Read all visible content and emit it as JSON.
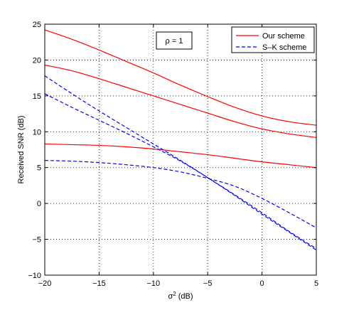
{
  "chart_data": {
    "type": "line",
    "xlabel_main": "σ",
    "xlabel_sup": "2",
    "xlabel_unit": " (dB)",
    "ylabel": "Received SNR (dB)",
    "xlim": [
      -20,
      5
    ],
    "ylim": [
      -10,
      25
    ],
    "xticks": [
      -20,
      -15,
      -10,
      -5,
      0,
      5
    ],
    "yticks": [
      -10,
      -5,
      0,
      5,
      10,
      15,
      20,
      25
    ],
    "xtick_labels": [
      "−20",
      "−15",
      "−10",
      "−5",
      "0",
      "5"
    ],
    "ytick_labels": [
      "−10",
      "−5",
      "0",
      "5",
      "10",
      "15",
      "20",
      "25"
    ],
    "grid": true,
    "legend_position": "top-right",
    "annotation": "ρ = 1",
    "legend": [
      {
        "label": "Our scheme",
        "color": "#ff0000",
        "dash": "solid"
      },
      {
        "label": "S–K scheme",
        "color": "#0000ff",
        "dash": "dashed"
      }
    ],
    "series": [
      {
        "group": "Our scheme",
        "color": "#ff0000",
        "dash": "solid",
        "x": [
          -20,
          -17.5,
          -15,
          -12.5,
          -10,
          -7.5,
          -5,
          -2.5,
          0,
          2.5,
          5
        ],
        "y": [
          24.2,
          22.9,
          21.4,
          19.8,
          18.2,
          16.5,
          14.9,
          13.4,
          12.2,
          11.4,
          10.9
        ]
      },
      {
        "group": "Our scheme",
        "color": "#ff0000",
        "dash": "solid",
        "x": [
          -20,
          -17.5,
          -15,
          -12.5,
          -10,
          -7.5,
          -5,
          -2.5,
          0,
          2.5,
          5
        ],
        "y": [
          19.3,
          18.5,
          17.4,
          16.2,
          15.0,
          13.8,
          12.6,
          11.4,
          10.4,
          9.7,
          9.2
        ]
      },
      {
        "group": "Our scheme",
        "color": "#ff0000",
        "dash": "solid",
        "x": [
          -20,
          -17.5,
          -15,
          -12.5,
          -10,
          -7.5,
          -5,
          -2.5,
          0,
          2.5,
          5
        ],
        "y": [
          8.3,
          8.2,
          8.1,
          7.9,
          7.6,
          7.2,
          6.8,
          6.3,
          5.8,
          5.4,
          5.0
        ]
      },
      {
        "group": "S–K scheme",
        "color": "#0000ff",
        "dash": "dashed",
        "x": [
          -20,
          -17.5,
          -15,
          -12.5,
          -10,
          -7.5,
          -5,
          -2.5,
          0,
          2.5,
          5
        ],
        "y": [
          17.8,
          15.3,
          12.9,
          10.6,
          8.3,
          6.0,
          3.6,
          1.1,
          -1.5,
          -4.0,
          -6.5
        ]
      },
      {
        "group": "S–K scheme",
        "color": "#0000ff",
        "dash": "dashed",
        "x": [
          -20,
          -17.5,
          -15,
          -12.5,
          -10,
          -7.5,
          -5,
          -2.5,
          0,
          2.5,
          5
        ],
        "y": [
          15.3,
          13.4,
          11.6,
          9.8,
          7.9,
          5.9,
          3.6,
          1.2,
          -1.3,
          -3.9,
          -6.3
        ]
      },
      {
        "group": "S–K scheme",
        "color": "#0000ff",
        "dash": "dashed",
        "x": [
          -20,
          -17.5,
          -15,
          -12.5,
          -10,
          -7.5,
          -5,
          -2.5,
          0,
          2.5,
          5
        ],
        "y": [
          6.0,
          5.9,
          5.7,
          5.4,
          5.0,
          4.4,
          3.5,
          2.4,
          0.7,
          -1.3,
          -3.4
        ]
      }
    ]
  }
}
